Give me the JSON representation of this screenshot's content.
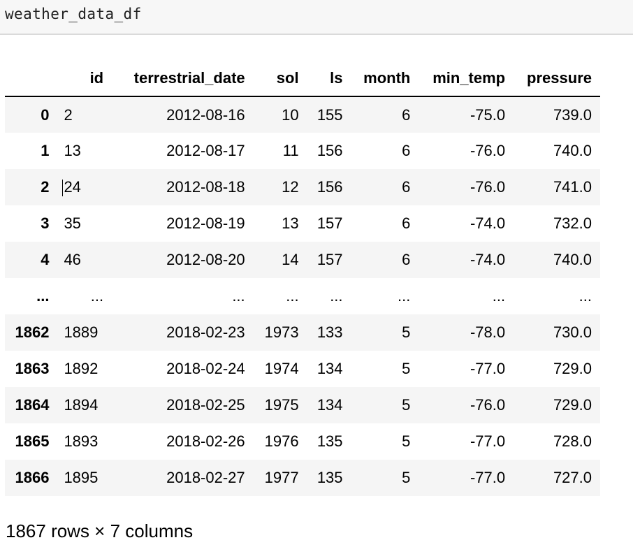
{
  "cell": {
    "code": "weather_data_df"
  },
  "table": {
    "columns": [
      "",
      "id",
      "terrestrial_date",
      "sol",
      "ls",
      "month",
      "min_temp",
      "pressure"
    ],
    "rows": [
      [
        "0",
        "2",
        "2012-08-16",
        "10",
        "155",
        "6",
        "-75.0",
        "739.0"
      ],
      [
        "1",
        "13",
        "2012-08-17",
        "11",
        "156",
        "6",
        "-76.0",
        "740.0"
      ],
      [
        "2",
        "24",
        "2012-08-18",
        "12",
        "156",
        "6",
        "-76.0",
        "741.0"
      ],
      [
        "3",
        "35",
        "2012-08-19",
        "13",
        "157",
        "6",
        "-74.0",
        "732.0"
      ],
      [
        "4",
        "46",
        "2012-08-20",
        "14",
        "157",
        "6",
        "-74.0",
        "740.0"
      ],
      [
        "...",
        "...",
        "...",
        "...",
        "...",
        "...",
        "...",
        "..."
      ],
      [
        "1862",
        "1889",
        "2018-02-23",
        "1973",
        "133",
        "5",
        "-78.0",
        "730.0"
      ],
      [
        "1863",
        "1892",
        "2018-02-24",
        "1974",
        "134",
        "5",
        "-77.0",
        "729.0"
      ],
      [
        "1864",
        "1894",
        "2018-02-25",
        "1975",
        "134",
        "5",
        "-76.0",
        "729.0"
      ],
      [
        "1865",
        "1893",
        "2018-02-26",
        "1976",
        "135",
        "5",
        "-77.0",
        "728.0"
      ],
      [
        "1866",
        "1895",
        "2018-02-27",
        "1977",
        "135",
        "5",
        "-77.0",
        "727.0"
      ]
    ]
  },
  "footer": {
    "shape": "1867 rows × 7 columns"
  }
}
